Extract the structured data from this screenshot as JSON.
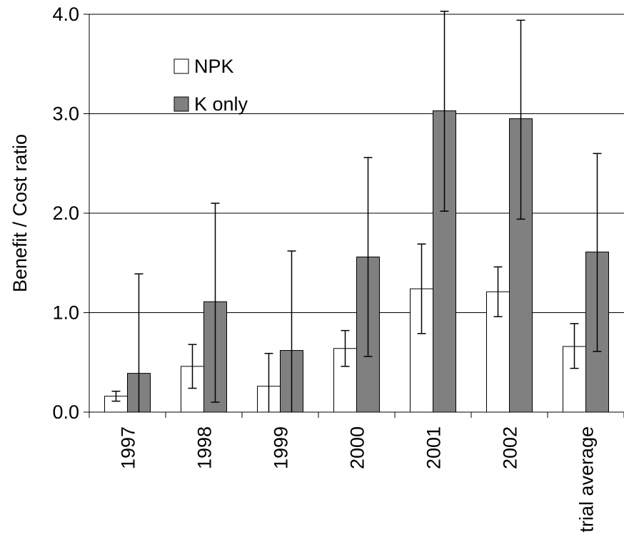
{
  "chart_data": {
    "type": "bar",
    "title": "",
    "xlabel": "",
    "ylabel": "Benefit / Cost ratio",
    "ylim": [
      0,
      4
    ],
    "yticks": [
      "0.0",
      "1.0",
      "2.0",
      "3.0",
      "4.0"
    ],
    "grid": true,
    "legend_position": "top-left",
    "categories": [
      "1997",
      "1998",
      "1999",
      "2000",
      "2001",
      "2002",
      "trial average"
    ],
    "series": [
      {
        "name": "NPK",
        "color": "#ffffff",
        "values": [
          0.16,
          0.46,
          0.26,
          0.64,
          1.24,
          1.21,
          0.66
        ],
        "err_low": [
          0.11,
          0.24,
          0.0,
          0.46,
          0.79,
          0.96,
          0.44
        ],
        "err_high": [
          0.21,
          0.68,
          0.59,
          0.82,
          1.69,
          1.46,
          0.89
        ]
      },
      {
        "name": "K only",
        "color": "#808080",
        "values": [
          0.39,
          1.11,
          0.62,
          1.56,
          3.03,
          2.95,
          1.61
        ],
        "err_low": [
          0.0,
          0.1,
          0.0,
          0.56,
          2.02,
          1.94,
          0.61
        ],
        "err_high": [
          1.39,
          2.1,
          1.62,
          2.56,
          4.03,
          3.94,
          2.6
        ]
      }
    ]
  }
}
